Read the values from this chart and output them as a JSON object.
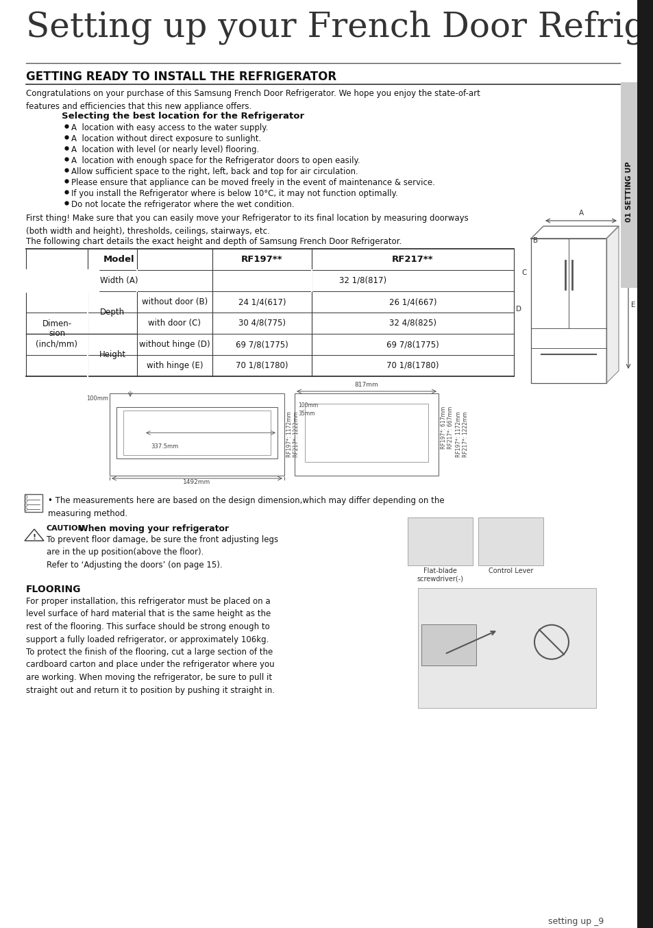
{
  "page_title": "Setting up your French Door Refrigerator",
  "section_title": "GETTING READY TO INSTALL THE REFRIGERATOR",
  "intro_text": "Congratulations on your purchase of this Samsung French Door Refrigerator. We hope you enjoy the state-of-art\nfeatures and efficiencies that this new appliance offers.",
  "subsection_title": "Selecting the best location for the Refrigerator",
  "bullets": [
    "A  location with easy access to the water supply.",
    "A  location without direct exposure to sunlight.",
    "A  location with level (or nearly level) flooring.",
    "A  location with enough space for the Refrigerator doors to open easily.",
    "Allow sufficient space to the right, left, back and top for air circulation.",
    "Please ensure that appliance can be moved freely in the event of maintenance & service.",
    "If you install the Refrigerator where is below 10°C, it may not function optimally.",
    "Do not locate the refrigerator where the wet condition."
  ],
  "para1": "First thing! Make sure that you can easily move your Refrigerator to its final location by measuring doorways\n(both width and height), thresholds, ceilings, stairways, etc.",
  "para2": "The following chart details the exact height and depth of Samsung French Door Refrigerator.",
  "dim_label": "Dimen-\nsion\n(inch/mm)",
  "depth_label": "Depth",
  "height_label": "Height",
  "note_text": "The measurements here are based on the design dimension,which may differ depending on the\nmeasuring method.",
  "caution_title": "When moving your refrigerator",
  "caution_text": "To prevent floor damage, be sure the front adjusting legs\nare in the up position(above the floor).\nRefer to ‘Adjusting the doors’ (on page 15).",
  "flatblade_label": "Flat-blade\nscrewdriver(-)",
  "controllever_label": "Control Lever",
  "flooring_title": "FLOORING",
  "flooring_text": "For proper installation, this refrigerator must be placed on a\nlevel surface of hard material that is the same height as the\nrest of the flooring. This surface should be strong enough to\nsupport a fully loaded refrigerator, or approximately 106kg.\nTo protect the finish of the flooring, cut a large section of the\ncardboard carton and place under the refrigerator where you\nare working. When moving the refrigerator, be sure to pull it\nstraight out and return it to position by pushing it straight in.",
  "sidebar_text": "01 SETTING UP",
  "footer_text": "setting up _9",
  "bg_color": "#ffffff"
}
